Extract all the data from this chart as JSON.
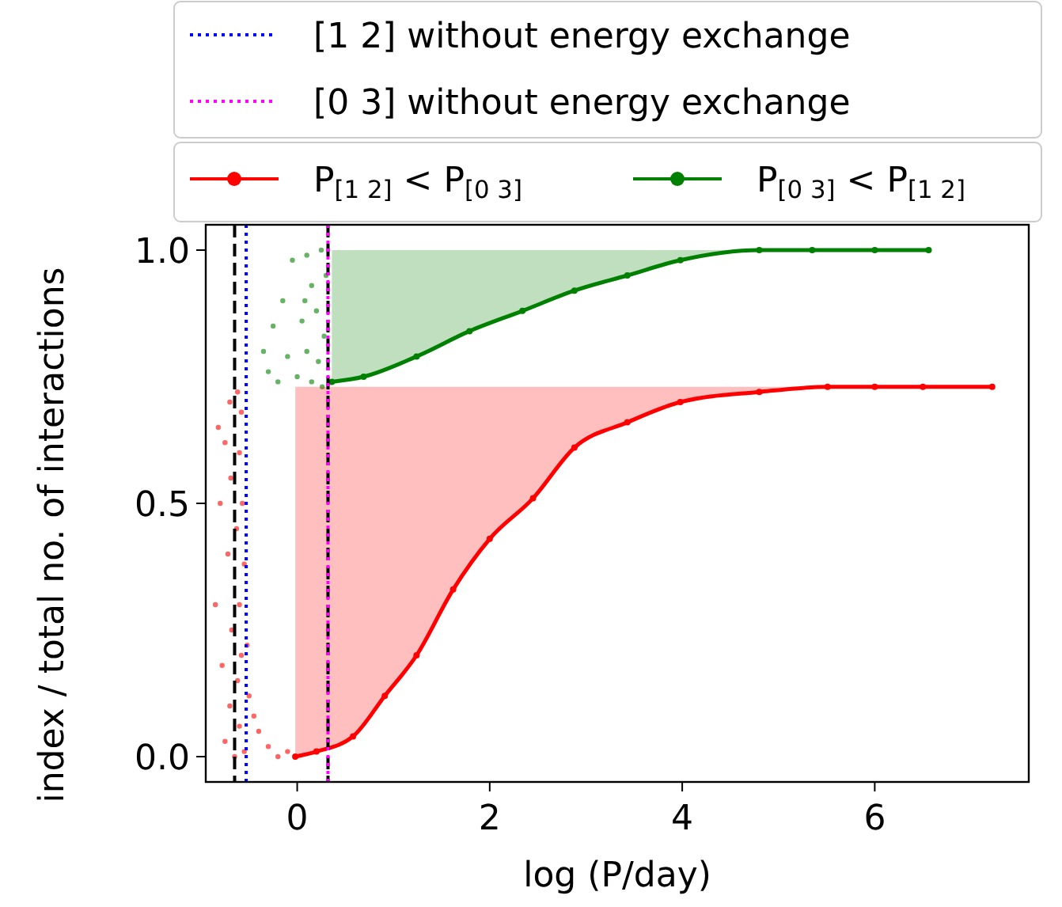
{
  "chart_data": {
    "type": "scatter",
    "xlabel": "log (P/day)",
    "ylabel": "index / total no. of interactions",
    "xlim": [
      -0.95,
      7.6
    ],
    "ylim": [
      -0.05,
      1.05
    ],
    "xticks": [
      0,
      2,
      4,
      6
    ],
    "yticks": [
      {
        "value": 0,
        "label": "0.0"
      },
      {
        "value": 0.5,
        "label": "0.5"
      },
      {
        "value": 1,
        "label": "1.0"
      }
    ],
    "grid": false,
    "legend": "top",
    "series": [
      {
        "type": "scatter",
        "color": "#ff0000",
        "x": [
          -0.62,
          -0.7,
          -0.58,
          -0.75,
          -0.6,
          -0.69,
          -0.8,
          -0.57,
          -0.63,
          -0.72,
          -0.55,
          -0.85,
          -0.6,
          -0.68,
          -0.52,
          -0.78,
          -0.62,
          -0.5,
          -0.7,
          -0.45,
          -0.6,
          -0.4,
          -0.75,
          -0.3,
          -0.55,
          -0.1,
          -0.65,
          -0.2,
          -0.82,
          -0.58
        ],
        "values": [
          0.72,
          0.7,
          0.68,
          0.62,
          0.6,
          0.55,
          0.5,
          0.5,
          0.45,
          0.4,
          0.38,
          0.3,
          0.3,
          0.25,
          0.22,
          0.18,
          0.15,
          0.12,
          0.1,
          0.08,
          0.06,
          0.05,
          0.03,
          0.02,
          0.01,
          0.01,
          0.0,
          0.0,
          0.65,
          0.2
        ]
      },
      {
        "type": "scatter",
        "color": "#008000",
        "x": [
          0.1,
          0.25,
          -0.05,
          0.3,
          0.15,
          -0.15,
          0.2,
          0.05,
          -0.25,
          0.28,
          0.1,
          -0.1,
          0.22,
          -0.3,
          0.0,
          0.15,
          -0.2,
          0.26,
          0.08,
          -0.35
        ],
        "values": [
          0.99,
          1.0,
          0.98,
          0.95,
          0.93,
          0.9,
          0.88,
          0.86,
          0.85,
          0.83,
          0.8,
          0.79,
          0.78,
          0.76,
          0.75,
          0.74,
          0.74,
          0.73,
          0.9,
          0.8
        ]
      },
      {
        "type": "line",
        "name": "P$_{[1 2]}$ < P$_{[0 3]}$",
        "color": "#ff0000",
        "marker": "circle",
        "x": [
          -0.02,
          0.2,
          0.58,
          0.91,
          1.24,
          1.62,
          2.0,
          2.45,
          2.88,
          3.43,
          3.98,
          4.8,
          5.51,
          6.0,
          6.5,
          7.22
        ],
        "values": [
          0.0,
          0.01,
          0.04,
          0.12,
          0.2,
          0.33,
          0.43,
          0.51,
          0.61,
          0.66,
          0.7,
          0.72,
          0.73,
          0.73,
          0.73,
          0.73
        ],
        "lower": [
          0.0,
          0.01,
          0.04,
          0.12,
          0.2,
          0.33,
          0.43,
          0.51,
          0.61,
          0.66,
          0.7,
          0.72,
          0.73,
          0.73,
          0.73,
          0.73
        ],
        "upper": [
          0.73,
          0.73,
          0.73,
          0.73,
          0.73,
          0.73,
          0.73,
          0.73,
          0.73,
          0.73,
          0.73,
          0.73,
          0.73,
          0.73,
          0.73,
          0.73
        ]
      },
      {
        "type": "line",
        "name": "P$_{[0 3]}$ < P$_{[1 2]}$",
        "color": "#008000",
        "marker": "circle",
        "x": [
          0.36,
          0.69,
          1.24,
          1.79,
          2.34,
          2.88,
          3.43,
          3.98,
          4.8,
          5.35,
          6.0,
          6.56
        ],
        "values": [
          0.74,
          0.75,
          0.79,
          0.84,
          0.88,
          0.92,
          0.95,
          0.98,
          1.0,
          1.0,
          1.0,
          1.0
        ],
        "lower": [
          0.74,
          0.75,
          0.79,
          0.84,
          0.88,
          0.92,
          0.95,
          0.98,
          1.0,
          1.0,
          1.0,
          1.0
        ],
        "upper": [
          1.0,
          1.0,
          1.0,
          1.0,
          1.0,
          1.0,
          1.0,
          1.0,
          1.0,
          1.0,
          1.0,
          1.0
        ]
      }
    ],
    "ref_lines": [
      {
        "axis": "x",
        "value": -0.65,
        "color": "#000000",
        "line_style": "dashed"
      },
      {
        "axis": "x",
        "value": 0.32,
        "color": "#000000",
        "line_style": "dashed"
      },
      {
        "axis": "x",
        "value": -0.53,
        "color": "#0000ff",
        "line_style": "dotted",
        "label": "[1 2] without energy exchange"
      },
      {
        "axis": "x",
        "value": 0.32,
        "color": "#ff00ff",
        "line_style": "dotted",
        "label": "[0 3] without energy exchange"
      }
    ]
  }
}
